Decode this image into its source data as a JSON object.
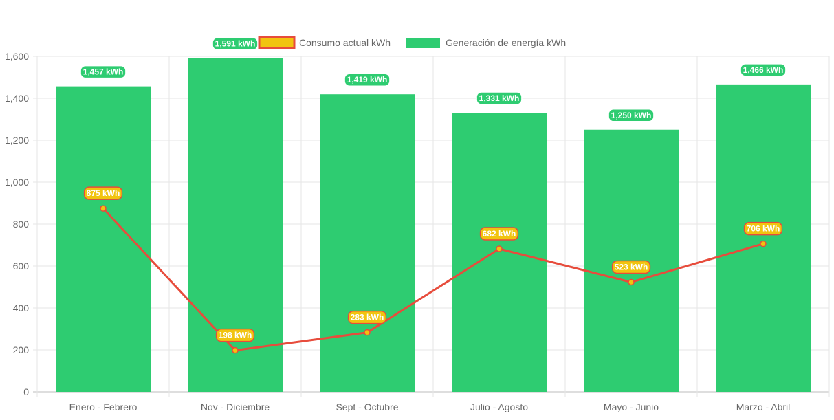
{
  "chart_data": {
    "type": "bar",
    "title": "",
    "xlabel": "",
    "ylabel": "",
    "ylim": [
      0,
      1600
    ],
    "yticks": [
      0,
      200,
      400,
      600,
      800,
      1000,
      1200,
      1400,
      1600
    ],
    "ytick_labels": [
      "0",
      "200",
      "400",
      "600",
      "800",
      "1,000",
      "1,200",
      "1,400",
      "1,600"
    ],
    "grid": true,
    "legend_position": "top-center",
    "categories": [
      "Enero - Febrero",
      "Nov - Diciembre",
      "Sept - Octubre",
      "Julio - Agosto",
      "Mayo - Junio",
      "Marzo - Abril"
    ],
    "series": [
      {
        "name": "Consumo actual kWh",
        "kind": "line",
        "color": "#e74c3c",
        "fill": "#f1c40f",
        "values": [
          875,
          198,
          283,
          682,
          523,
          706
        ],
        "labels": [
          "875 kWh",
          "198 kWh",
          "283 kWh",
          "682 kWh",
          "523 kWh",
          "706 kWh"
        ]
      },
      {
        "name": "Generación de energía kWh",
        "kind": "bar",
        "color": "#2ecc71",
        "values": [
          1457,
          1591,
          1419,
          1331,
          1250,
          1466
        ],
        "labels": [
          "1,457 kWh",
          "1,591 kWh",
          "1,419 kWh",
          "1,331 kWh",
          "1,250 kWh",
          "1,466 kWh"
        ]
      }
    ]
  }
}
